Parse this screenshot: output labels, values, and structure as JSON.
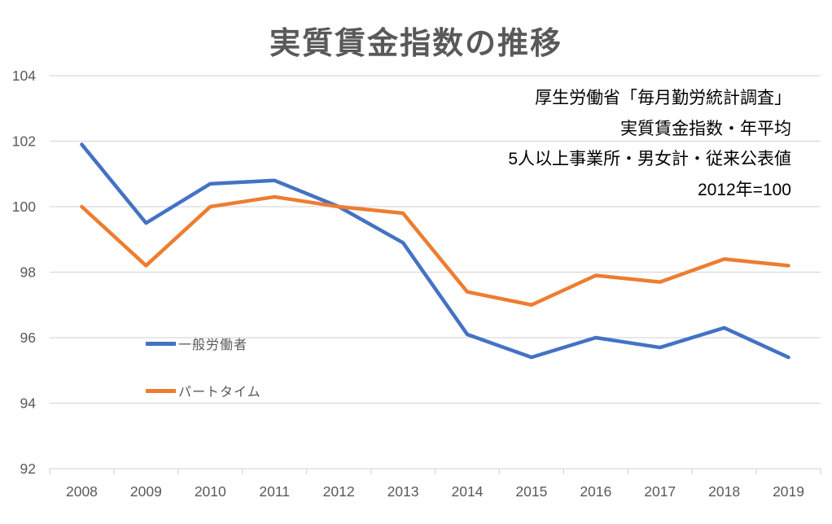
{
  "title": "実質賃金指数の推移",
  "annotation": {
    "lines": [
      "厚生労働省「毎月勤労統計調査」",
      "実質賃金指数・年平均",
      "5人以上事業所・男女計・従来公表値",
      "2012年=100"
    ]
  },
  "legend": [
    {
      "label": "一般労働者",
      "color": "#4472C4"
    },
    {
      "label": "パートタイム",
      "color": "#ED7D31"
    }
  ],
  "colors": {
    "gridline": "#D9D9D9",
    "axis_text": "#595959",
    "title_text": "#595959",
    "annotation_text": "#000000",
    "background": "#FFFFFF"
  },
  "chart_data": {
    "type": "line",
    "title": "実質賃金指数の推移",
    "categories": [
      "2008",
      "2009",
      "2010",
      "2011",
      "2012",
      "2013",
      "2014",
      "2015",
      "2016",
      "2017",
      "2018",
      "2019"
    ],
    "series": [
      {
        "name": "一般労働者",
        "color": "#4472C4",
        "values": [
          101.9,
          99.5,
          100.7,
          100.8,
          100.0,
          98.9,
          96.1,
          95.4,
          96.0,
          95.7,
          96.3,
          95.4
        ]
      },
      {
        "name": "パートタイム",
        "color": "#ED7D31",
        "values": [
          100.0,
          98.2,
          100.0,
          100.3,
          100.0,
          99.8,
          97.4,
          97.0,
          97.9,
          97.7,
          98.4,
          98.2
        ]
      }
    ],
    "xlabel": "",
    "ylabel": "",
    "ylim": [
      92,
      104
    ],
    "ytick_step": 2,
    "grid": true,
    "legend_position": "inside-left",
    "annotations": [
      "厚生労働省「毎月勤労統計調査」",
      "実質賃金指数・年平均",
      "5人以上事業所・男女計・従来公表値",
      "2012年=100"
    ]
  }
}
